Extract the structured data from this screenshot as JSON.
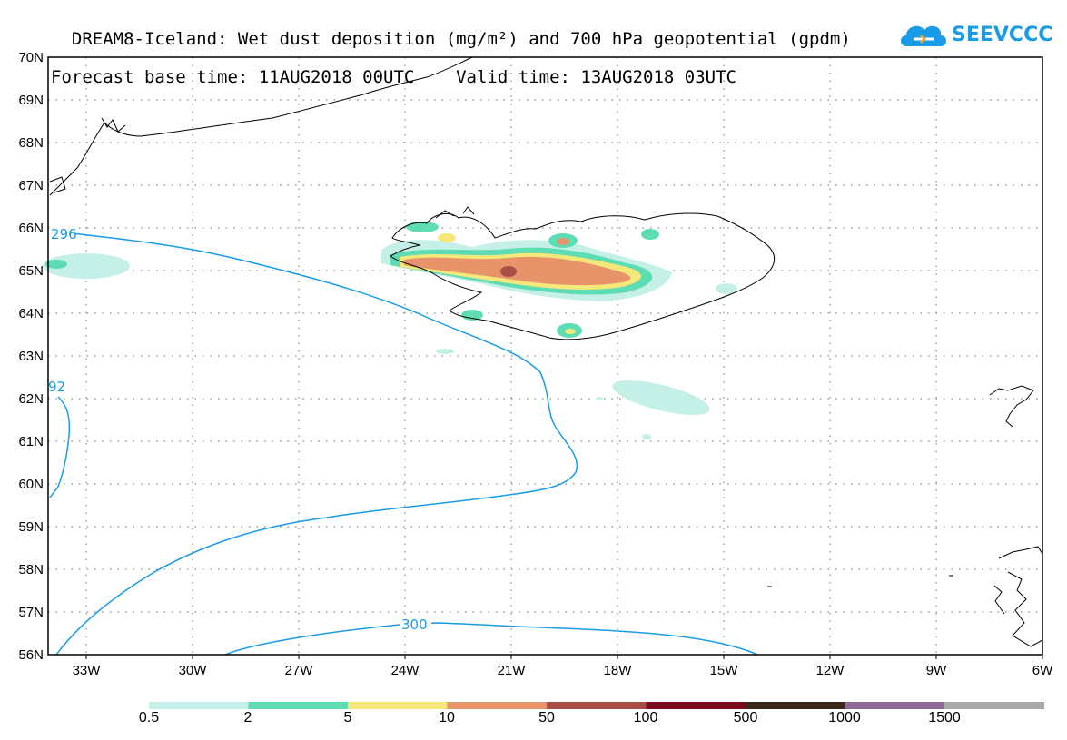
{
  "title": {
    "line1": "DREAM8-Iceland: Wet dust deposition (mg/m²) and 700 hPa geopotential (gpdm)",
    "line2": "Forecast base time: 11AUG2018 00UTC    Valid time: 13AUG2018 03UTC"
  },
  "logo": {
    "text": "SEEVCCC",
    "icon": "cloud-icon",
    "color": "#1a9be6"
  },
  "axes": {
    "lat_labels": [
      "70N",
      "69N",
      "68N",
      "67N",
      "66N",
      "65N",
      "64N",
      "63N",
      "62N",
      "61N",
      "60N",
      "59N",
      "58N",
      "57N",
      "56N"
    ],
    "lon_labels": [
      "33W",
      "30W",
      "27W",
      "24W",
      "21W",
      "18W",
      "15W",
      "12W",
      "9W",
      "6W"
    ]
  },
  "contours": [
    {
      "label": "296"
    },
    {
      "label": "92"
    },
    {
      "label": "300"
    }
  ],
  "colorbar": {
    "colors": [
      "#c4f0e8",
      "#5edcb4",
      "#f5e87a",
      "#e8946a",
      "#a84e46",
      "#7a0a1e",
      "#3a2618",
      "#8e6a98",
      "#aaaaaa"
    ],
    "labels": [
      "0.5",
      "2",
      "5",
      "10",
      "50",
      "100",
      "500",
      "1000",
      "1500"
    ]
  }
}
